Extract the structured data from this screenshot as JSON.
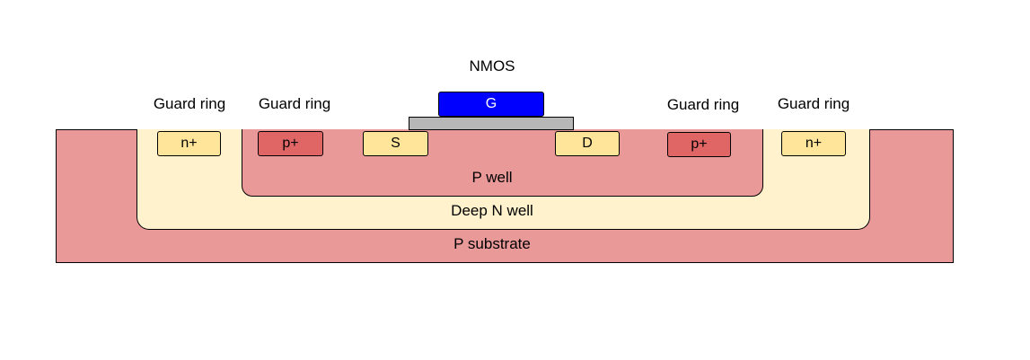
{
  "title": "NMOS",
  "colors": {
    "p_substrate": "#ea9999",
    "deep_n_well": "#fff2cc",
    "p_well": "#ea9999",
    "n_plus": "#ffe599",
    "p_plus": "#e06666",
    "gate": "#0000ff",
    "gate_oxide": "#b7b7b7"
  },
  "labels": {
    "guard_ring_1": "Guard ring",
    "guard_ring_2": "Guard ring",
    "guard_ring_3": "Guard ring",
    "guard_ring_4": "Guard ring"
  },
  "regions": {
    "p_substrate": "P substrate",
    "deep_n_well": "Deep N well",
    "p_well": "P well"
  },
  "contacts": {
    "n_plus_left": "n+",
    "p_plus_left": "p+",
    "source": "S",
    "drain": "D",
    "p_plus_right": "p+",
    "n_plus_right": "n+"
  },
  "gate": {
    "label": "G"
  }
}
